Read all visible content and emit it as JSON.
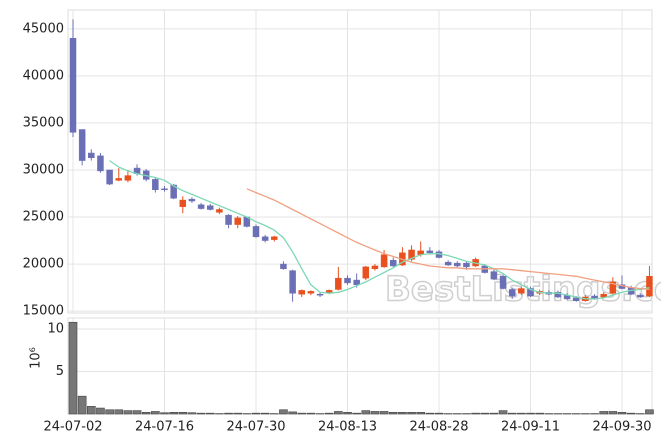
{
  "chart_data": {
    "type": "candlestick",
    "watermark": "BestListings.com",
    "categories": [
      "24-07-02",
      null,
      null,
      null,
      null,
      null,
      null,
      null,
      null,
      null,
      "24-07-16",
      null,
      null,
      null,
      null,
      null,
      null,
      null,
      null,
      null,
      "24-07-30",
      null,
      null,
      null,
      null,
      null,
      null,
      null,
      null,
      null,
      "24-08-13",
      null,
      null,
      null,
      null,
      null,
      null,
      null,
      null,
      null,
      "24-08-28",
      null,
      null,
      null,
      null,
      null,
      null,
      null,
      null,
      null,
      "24-09-11",
      null,
      null,
      null,
      null,
      null,
      null,
      null,
      null,
      null,
      "24-09-30",
      null,
      null,
      null
    ],
    "open": [
      44000,
      34300,
      31800,
      31500,
      30000,
      28900,
      28900,
      30200,
      29900,
      29000,
      28000,
      28400,
      26100,
      26900,
      26300,
      26200,
      25500,
      25200,
      24200,
      25000,
      24000,
      22900,
      22600,
      20000,
      19300,
      16800,
      16900,
      16800,
      16900,
      17300,
      18500,
      18300,
      18500,
      19500,
      19700,
      20400,
      19900,
      20500,
      21000,
      21400,
      21300,
      20200,
      20100,
      20100,
      19800,
      19800,
      19200,
      18700,
      17300,
      16900,
      17400,
      16900,
      17000,
      17000,
      16700,
      16400,
      16100,
      16600,
      16500,
      16900,
      17800,
      17500,
      16700,
      16600
    ],
    "high": [
      46000,
      34300,
      32200,
      31800,
      30000,
      30200,
      30000,
      30600,
      30100,
      29200,
      28300,
      28500,
      27200,
      27100,
      26500,
      26400,
      26000,
      25300,
      25100,
      25000,
      24200,
      23100,
      23000,
      20300,
      19400,
      17300,
      17200,
      17000,
      17300,
      19700,
      18800,
      19000,
      19800,
      20000,
      21500,
      20700,
      21800,
      22000,
      22400,
      21800,
      21500,
      20400,
      20300,
      20300,
      20700,
      20000,
      19400,
      18900,
      17500,
      17600,
      17600,
      17300,
      17200,
      17200,
      16900,
      16600,
      16700,
      16800,
      17000,
      18600,
      18800,
      17700,
      16900,
      19800
    ],
    "low": [
      33500,
      30500,
      31000,
      29700,
      28400,
      28800,
      28700,
      29400,
      28800,
      27600,
      27700,
      26900,
      25400,
      26500,
      25800,
      25700,
      25300,
      23800,
      23800,
      23900,
      22800,
      22300,
      22400,
      19400,
      16000,
      16500,
      16700,
      16500,
      16800,
      17200,
      17800,
      17500,
      18300,
      19300,
      19600,
      19700,
      19800,
      20300,
      20800,
      21000,
      20600,
      19800,
      19600,
      19400,
      19700,
      19000,
      18300,
      17300,
      16300,
      16700,
      16500,
      16700,
      16700,
      16400,
      16200,
      16000,
      16000,
      16200,
      16400,
      16800,
      17300,
      16700,
      16400,
      16500
    ],
    "close": [
      34000,
      31000,
      31300,
      29900,
      28500,
      29100,
      29400,
      29600,
      29000,
      27900,
      27900,
      27000,
      26800,
      26700,
      25900,
      25800,
      25800,
      24200,
      24900,
      24000,
      22900,
      22500,
      22900,
      19500,
      16900,
      17200,
      17100,
      16700,
      17200,
      18500,
      18000,
      17800,
      19700,
      19800,
      21000,
      19800,
      21200,
      21500,
      21400,
      21200,
      20700,
      19900,
      19800,
      19700,
      20500,
      19100,
      18400,
      17400,
      16600,
      17400,
      16600,
      17100,
      16800,
      16500,
      16300,
      16100,
      16500,
      16300,
      16800,
      18100,
      17400,
      16800,
      16500,
      18700
    ],
    "up_color": "#e8501f",
    "down_color": "#6b6fb5",
    "ylim": [
      14800,
      47000
    ],
    "yticks": [
      15000,
      20000,
      25000,
      30000,
      35000,
      40000,
      45000
    ],
    "grid": true,
    "moving_averages": [
      {
        "color": "#7dd8b5",
        "values": [
          null,
          null,
          null,
          null,
          31000,
          30300,
          29900,
          29600,
          29400,
          29200,
          28900,
          28300,
          27800,
          27400,
          27000,
          26600,
          26200,
          25800,
          25400,
          25000,
          24500,
          24100,
          23600,
          22800,
          21300,
          19500,
          17800,
          17000,
          16900,
          17000,
          17300,
          17700,
          18100,
          18600,
          19100,
          19600,
          20200,
          20600,
          21000,
          21100,
          21100,
          20900,
          20600,
          20300,
          20100,
          19900,
          19500,
          19000,
          18300,
          17800,
          17300,
          17000,
          16900,
          16900,
          16700,
          16500,
          16300,
          16300,
          16400,
          16700,
          17000,
          17200,
          17300,
          17500
        ]
      },
      {
        "color": "#f0a080",
        "values": [
          null,
          null,
          null,
          null,
          null,
          null,
          null,
          null,
          null,
          null,
          null,
          null,
          null,
          null,
          null,
          null,
          null,
          null,
          null,
          28000,
          27600,
          27200,
          26800,
          26300,
          25800,
          25300,
          24800,
          24300,
          23800,
          23300,
          22800,
          22300,
          21900,
          21500,
          21100,
          20800,
          20500,
          20200,
          20000,
          19800,
          19700,
          19600,
          19600,
          19500,
          19500,
          19500,
          19500,
          19500,
          19400,
          19300,
          19200,
          19100,
          19000,
          18900,
          18800,
          18700,
          18500,
          18300,
          18100,
          17900,
          17700,
          17500,
          17400,
          17300
        ]
      }
    ],
    "volume": {
      "axis_label": "10⁶",
      "color": "#777777",
      "values": [
        10.8,
        2.1,
        0.9,
        0.7,
        0.5,
        0.5,
        0.4,
        0.4,
        0.2,
        0.3,
        0.15,
        0.2,
        0.2,
        0.15,
        0.1,
        0.1,
        0.05,
        0.1,
        0.1,
        0.05,
        0.1,
        0.1,
        0.05,
        0.5,
        0.25,
        0.1,
        0.1,
        0.05,
        0.1,
        0.3,
        0.2,
        0.1,
        0.4,
        0.3,
        0.3,
        0.2,
        0.2,
        0.2,
        0.2,
        0.1,
        0.1,
        0.05,
        0.05,
        0.05,
        0.1,
        0.1,
        0.1,
        0.4,
        0.1,
        0.1,
        0.1,
        0.1,
        0.05,
        0.05,
        0.05,
        0.05,
        0.05,
        0.05,
        0.3,
        0.3,
        0.2,
        0.1,
        0.05,
        0.5
      ],
      "ylim": [
        0,
        11.3
      ],
      "yticks": [
        5,
        10
      ]
    }
  }
}
